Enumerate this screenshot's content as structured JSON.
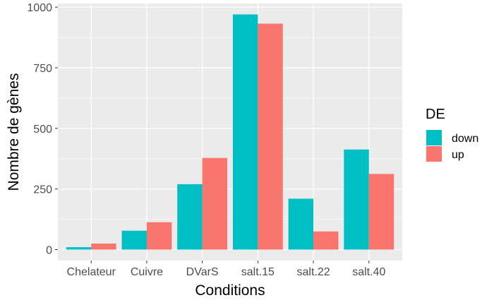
{
  "chart_data": {
    "type": "bar",
    "xlabel": "Conditions",
    "ylabel": "Nombre de gènes",
    "categories": [
      "Chelateur",
      "Cuivre",
      "DVarS",
      "salt.15",
      "salt.22",
      "salt.40"
    ],
    "series": [
      {
        "name": "down",
        "color": "#00BFC4",
        "values": [
          10,
          78,
          270,
          970,
          210,
          413
        ]
      },
      {
        "name": "up",
        "color": "#F8766D",
        "values": [
          25,
          113,
          378,
          932,
          75,
          312
        ]
      }
    ],
    "ylim": [
      -45,
      1015
    ],
    "yticks": [
      0,
      250,
      500,
      750,
      1000
    ],
    "ytick_labels": [
      "0",
      "250",
      "500",
      "750",
      "1000"
    ],
    "legend": {
      "title": "DE",
      "position": "right"
    },
    "grid": true,
    "background": "#EBEBEB",
    "grid_color": "#FFFFFF"
  }
}
